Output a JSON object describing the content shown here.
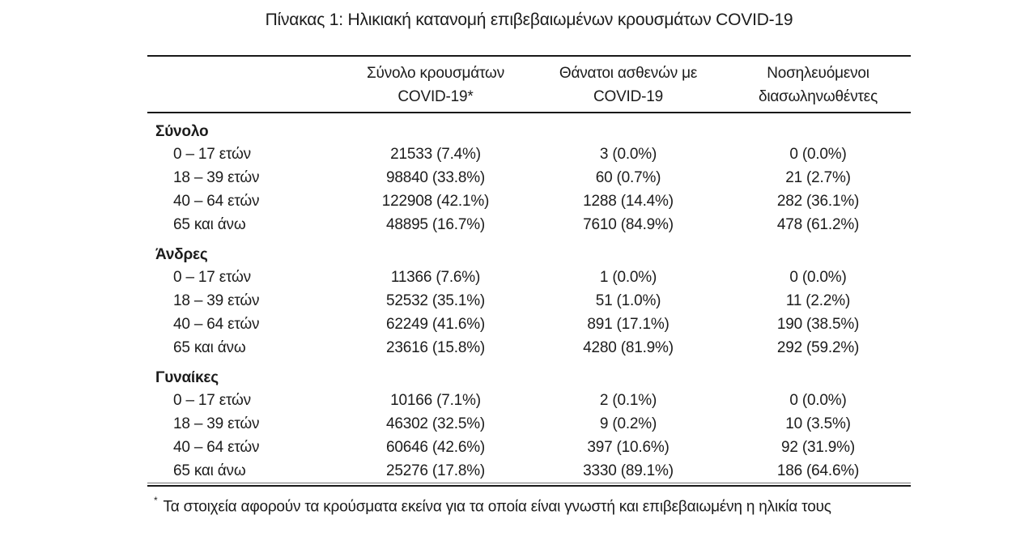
{
  "title": "Πίνακας 1: Ηλικιακή κατανομή επιβεβαιωμένων κρουσμάτων COVID-19",
  "table": {
    "columns": [
      {
        "line1": "Σύνολο κρουσμάτων",
        "line2": "COVID-19*"
      },
      {
        "line1": "Θάνατοι ασθενών με",
        "line2": "COVID-19"
      },
      {
        "line1": "Νοσηλευόμενοι",
        "line2": "διασωληνωθέντες"
      }
    ],
    "sections": [
      {
        "label": "Σύνολο",
        "rows": [
          {
            "age": "0 – 17 ετών",
            "cases": "21533 (7.4%)",
            "deaths": "3 (0.0%)",
            "intubated": "0 (0.0%)"
          },
          {
            "age": "18 – 39 ετών",
            "cases": "98840 (33.8%)",
            "deaths": "60 (0.7%)",
            "intubated": "21 (2.7%)"
          },
          {
            "age": "40 – 64 ετών",
            "cases": "122908 (42.1%)",
            "deaths": "1288 (14.4%)",
            "intubated": "282 (36.1%)"
          },
          {
            "age": "65 και άνω",
            "cases": "48895 (16.7%)",
            "deaths": "7610 (84.9%)",
            "intubated": "478 (61.2%)"
          }
        ]
      },
      {
        "label": "Άνδρες",
        "rows": [
          {
            "age": "0 – 17 ετών",
            "cases": "11366 (7.6%)",
            "deaths": "1 (0.0%)",
            "intubated": "0 (0.0%)"
          },
          {
            "age": "18 – 39 ετών",
            "cases": "52532 (35.1%)",
            "deaths": "51 (1.0%)",
            "intubated": "11 (2.2%)"
          },
          {
            "age": "40 – 64 ετών",
            "cases": "62249 (41.6%)",
            "deaths": "891 (17.1%)",
            "intubated": "190 (38.5%)"
          },
          {
            "age": "65 και άνω",
            "cases": "23616 (15.8%)",
            "deaths": "4280 (81.9%)",
            "intubated": "292 (59.2%)"
          }
        ]
      },
      {
        "label": "Γυναίκες",
        "rows": [
          {
            "age": "0 – 17 ετών",
            "cases": "10166 (7.1%)",
            "deaths": "2 (0.1%)",
            "intubated": "0 (0.0%)"
          },
          {
            "age": "18 – 39 ετών",
            "cases": "46302 (32.5%)",
            "deaths": "9 (0.2%)",
            "intubated": "10 (3.5%)"
          },
          {
            "age": "40 – 64 ετών",
            "cases": "60646 (42.6%)",
            "deaths": "397 (10.6%)",
            "intubated": "92 (31.9%)"
          },
          {
            "age": "65 και άνω",
            "cases": "25276 (17.8%)",
            "deaths": "3330 (89.1%)",
            "intubated": "186 (64.6%)"
          }
        ]
      }
    ]
  },
  "footnote": {
    "marker": "*",
    "text": "Τα στοιχεία αφορούν τα κρούσματα εκείνα για τα οποία είναι γνωστή και επιβεβαιωμένη η ηλικία τους"
  },
  "colors": {
    "background": "#ffffff",
    "text": "#1c1c1c",
    "rule": "#191919"
  }
}
